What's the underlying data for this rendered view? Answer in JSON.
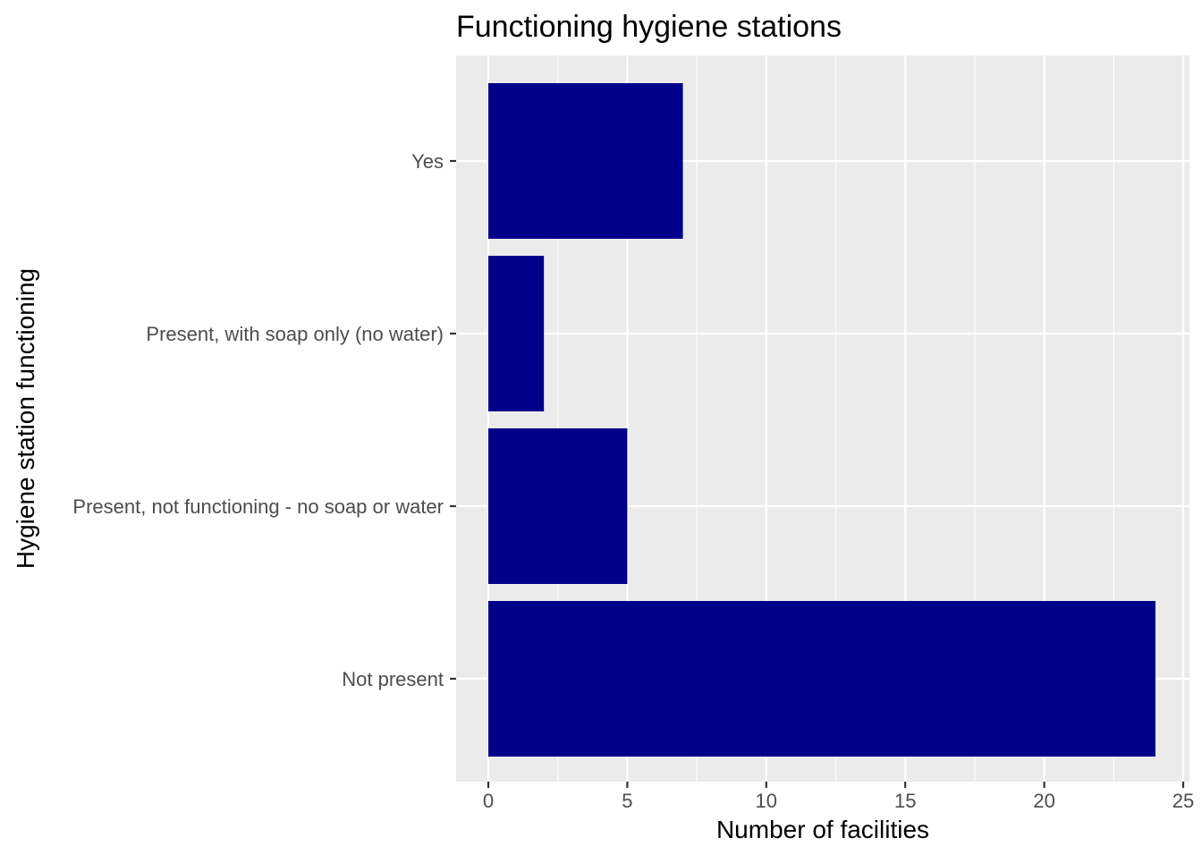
{
  "chart_data": {
    "type": "bar",
    "orientation": "horizontal",
    "title": "Functioning hygiene stations",
    "xlabel": "Number of facilities",
    "ylabel": "Hygiene station functioning",
    "categories": [
      "Not present",
      "Present, not functioning - no soap or water",
      "Present, with soap only (no water)",
      "Yes"
    ],
    "values": [
      24,
      5,
      2,
      7
    ],
    "xlim": [
      0,
      25
    ],
    "xticks": [
      0,
      5,
      10,
      15,
      20,
      25
    ],
    "grid": true,
    "legend": "none",
    "colors": {
      "bar": "#00008B",
      "panel_background": "#EBEBEB",
      "grid": "#FFFFFF",
      "tick_text": "#4D4D4D",
      "tick_mark": "#333333"
    }
  }
}
